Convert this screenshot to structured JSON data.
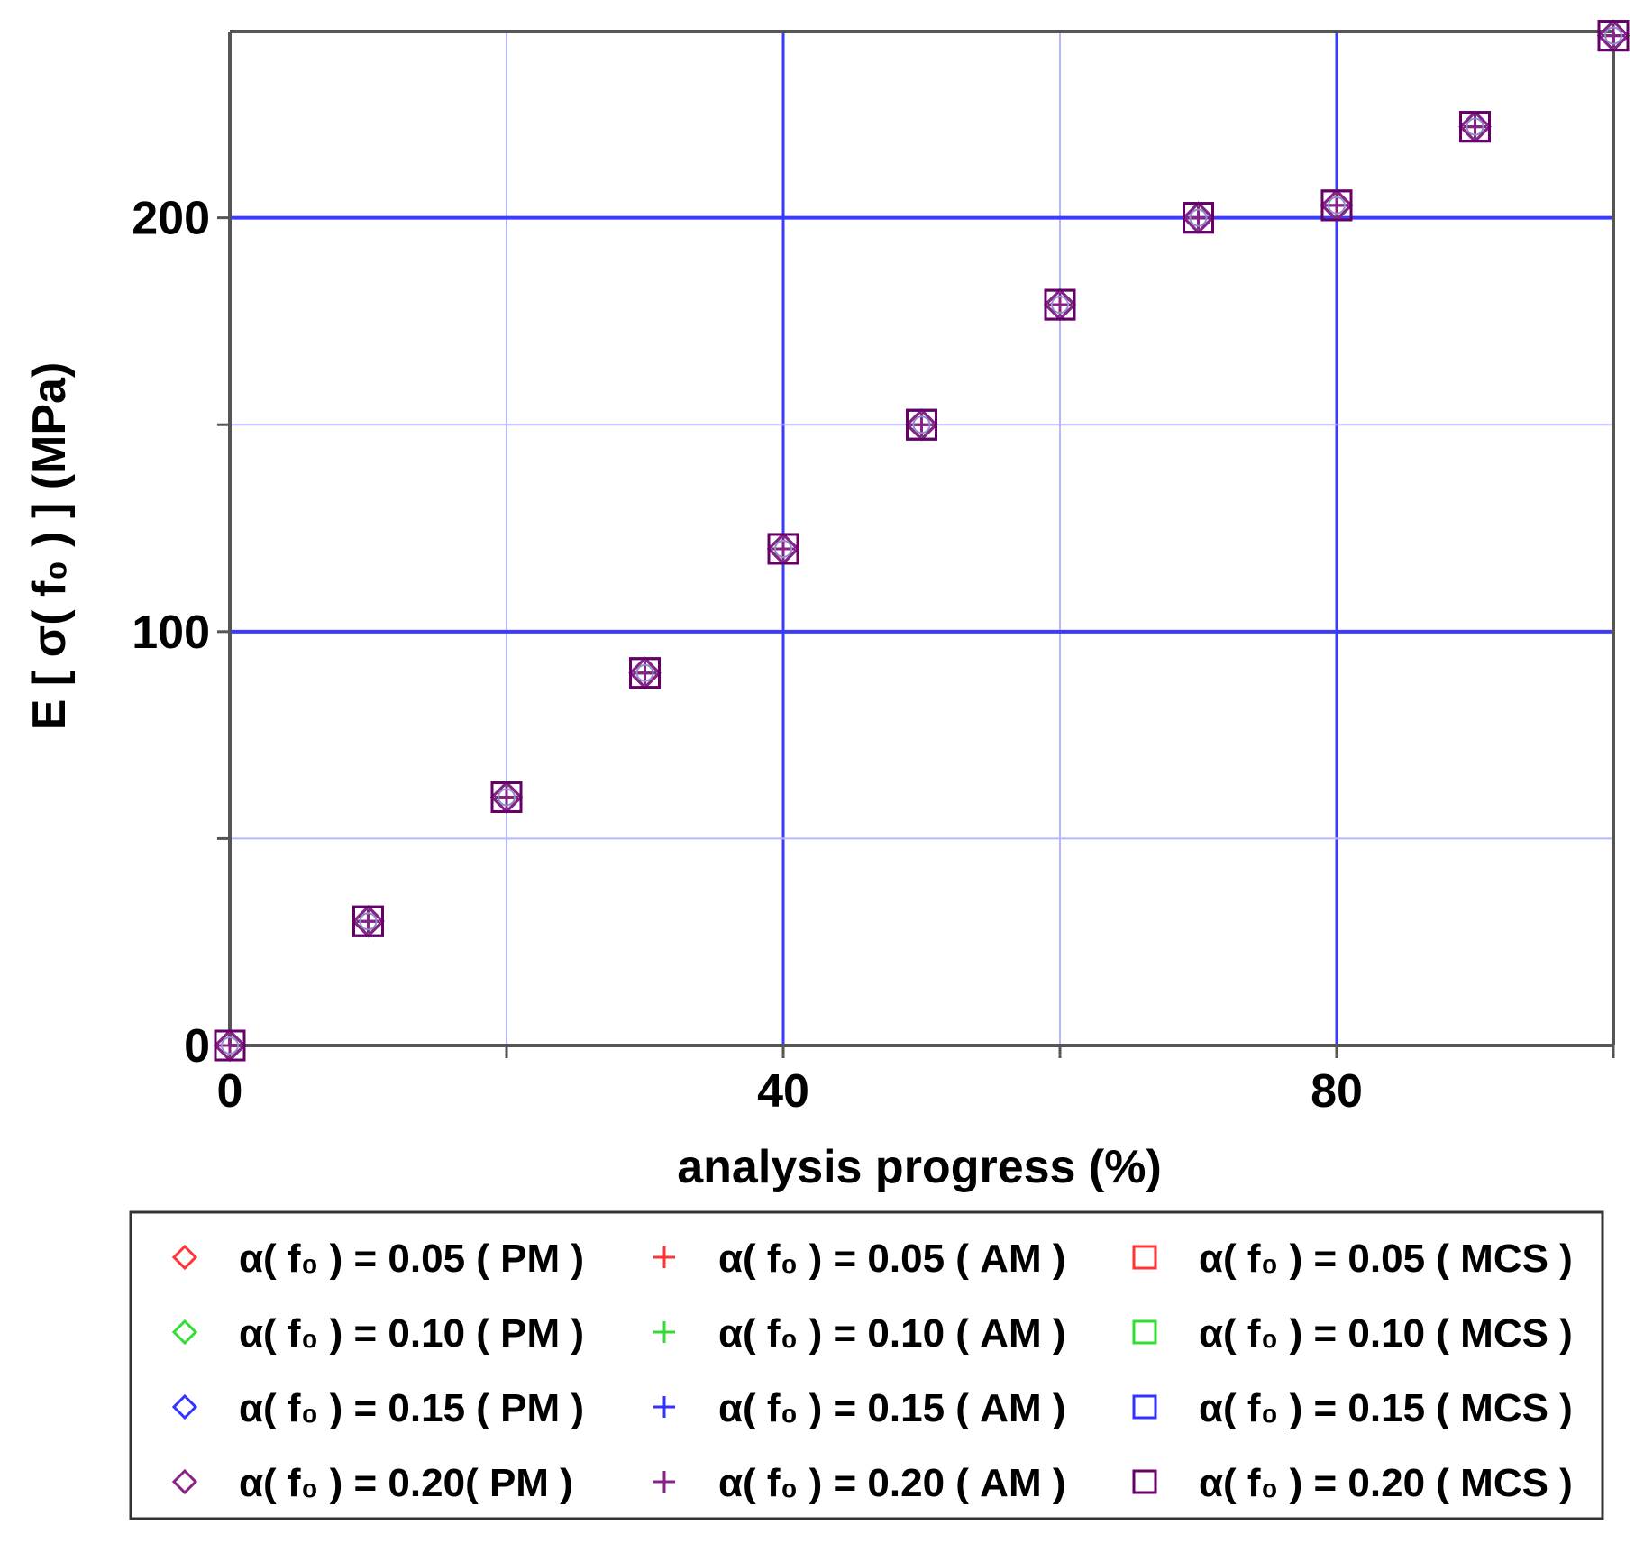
{
  "chart_data": {
    "type": "scatter",
    "xlabel": "analysis progress (%)",
    "ylabel": "E [ σ( f₀ ) ] (MPa)",
    "xlim": [
      0,
      100
    ],
    "ylim": [
      0,
      245
    ],
    "x_ticks": [
      "0",
      "40",
      "80"
    ],
    "y_ticks": [
      "0",
      "100",
      "200"
    ],
    "grid": true,
    "legend_position": "bottom",
    "x": [
      0,
      10,
      20,
      30,
      40,
      50,
      60,
      70,
      80,
      90,
      100
    ],
    "series": [
      {
        "name": "α( f₀ ) = 0.05 ( PM )",
        "marker": "diamond",
        "color": "#ff3333",
        "values": [
          0,
          30,
          60,
          90,
          120,
          150,
          179,
          200,
          203,
          222,
          244
        ]
      },
      {
        "name": "α( f₀ ) = 0.10 ( PM )",
        "marker": "diamond",
        "color": "#33dd33",
        "values": [
          0,
          30,
          60,
          90,
          120,
          150,
          179,
          200,
          203,
          222,
          244
        ]
      },
      {
        "name": "α( f₀ ) = 0.15 ( PM )",
        "marker": "diamond",
        "color": "#3333ff",
        "values": [
          0,
          30,
          60,
          90,
          120,
          150,
          179,
          200,
          203,
          222,
          244
        ]
      },
      {
        "name": "α( f₀ ) = 0.20( PM )",
        "marker": "diamond",
        "color": "#882288",
        "values": [
          0,
          30,
          60,
          90,
          120,
          150,
          179,
          200,
          203,
          222,
          244
        ]
      },
      {
        "name": "α( f₀ ) = 0.05 ( AM )",
        "marker": "plus",
        "color": "#ff3333",
        "values": [
          0,
          30,
          60,
          90,
          120,
          150,
          179,
          200,
          203,
          222,
          244
        ]
      },
      {
        "name": "α( f₀ ) = 0.10 ( AM )",
        "marker": "plus",
        "color": "#33dd33",
        "values": [
          0,
          30,
          60,
          90,
          120,
          150,
          179,
          200,
          203,
          222,
          244
        ]
      },
      {
        "name": "α( f₀ ) = 0.15 ( AM )",
        "marker": "plus",
        "color": "#3333ff",
        "values": [
          0,
          30,
          60,
          90,
          120,
          150,
          179,
          200,
          203,
          222,
          244
        ]
      },
      {
        "name": "α( f₀ ) = 0.20 ( AM )",
        "marker": "plus",
        "color": "#882288",
        "values": [
          0,
          30,
          60,
          90,
          120,
          150,
          179,
          200,
          203,
          222,
          244
        ]
      },
      {
        "name": "α( f₀ ) = 0.05 ( MCS )",
        "marker": "square",
        "color": "#ff3333",
        "values": [
          0,
          30,
          60,
          90,
          120,
          150,
          179,
          200,
          203,
          222,
          244
        ]
      },
      {
        "name": "α( f₀ ) = 0.10 ( MCS )",
        "marker": "square",
        "color": "#33dd33",
        "values": [
          0,
          30,
          60,
          90,
          120,
          150,
          179,
          200,
          203,
          222,
          244
        ]
      },
      {
        "name": "α( f₀ ) = 0.15 ( MCS )",
        "marker": "square",
        "color": "#3333ff",
        "values": [
          0,
          30,
          60,
          90,
          120,
          150,
          179,
          200,
          203,
          222,
          244
        ]
      },
      {
        "name": "α( f₀ ) = 0.20 ( MCS )",
        "marker": "square",
        "color": "#660066",
        "values": [
          0,
          30,
          60,
          90,
          120,
          150,
          179,
          200,
          203,
          222,
          244
        ]
      }
    ]
  }
}
